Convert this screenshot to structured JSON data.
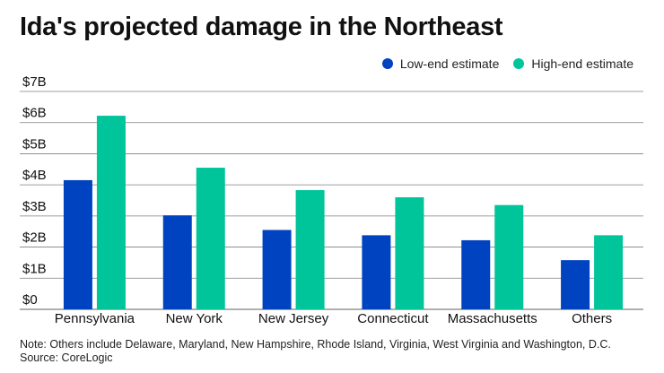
{
  "colors": {
    "low": "#0043c1",
    "high": "#00c49a",
    "grid": "#7f7f7f"
  },
  "chart_data": {
    "type": "bar",
    "title": "Ida's projected damage in the Northeast",
    "categories": [
      "Pennsylvania",
      "New York",
      "New Jersey",
      "Connecticut",
      "Massachusetts",
      "Others"
    ],
    "series": [
      {
        "name": "Low-end estimate",
        "values": [
          4.15,
          3.02,
          2.55,
          2.38,
          2.22,
          1.58
        ]
      },
      {
        "name": "High-end estimate",
        "values": [
          6.22,
          4.55,
          3.83,
          3.6,
          3.35,
          2.38
        ]
      }
    ],
    "yticks": [
      "$0",
      "$1B",
      "$2B",
      "$3B",
      "$4B",
      "$5B",
      "$6B",
      "$7B"
    ],
    "ylim": [
      0,
      7
    ],
    "grid": true,
    "legend_position": "top-right"
  },
  "note": "Note: Others include Delaware, Maryland, New Hampshire, Rhode Island, Virginia, West Virginia and Washington, D.C.",
  "source": "Source: CoreLogic"
}
